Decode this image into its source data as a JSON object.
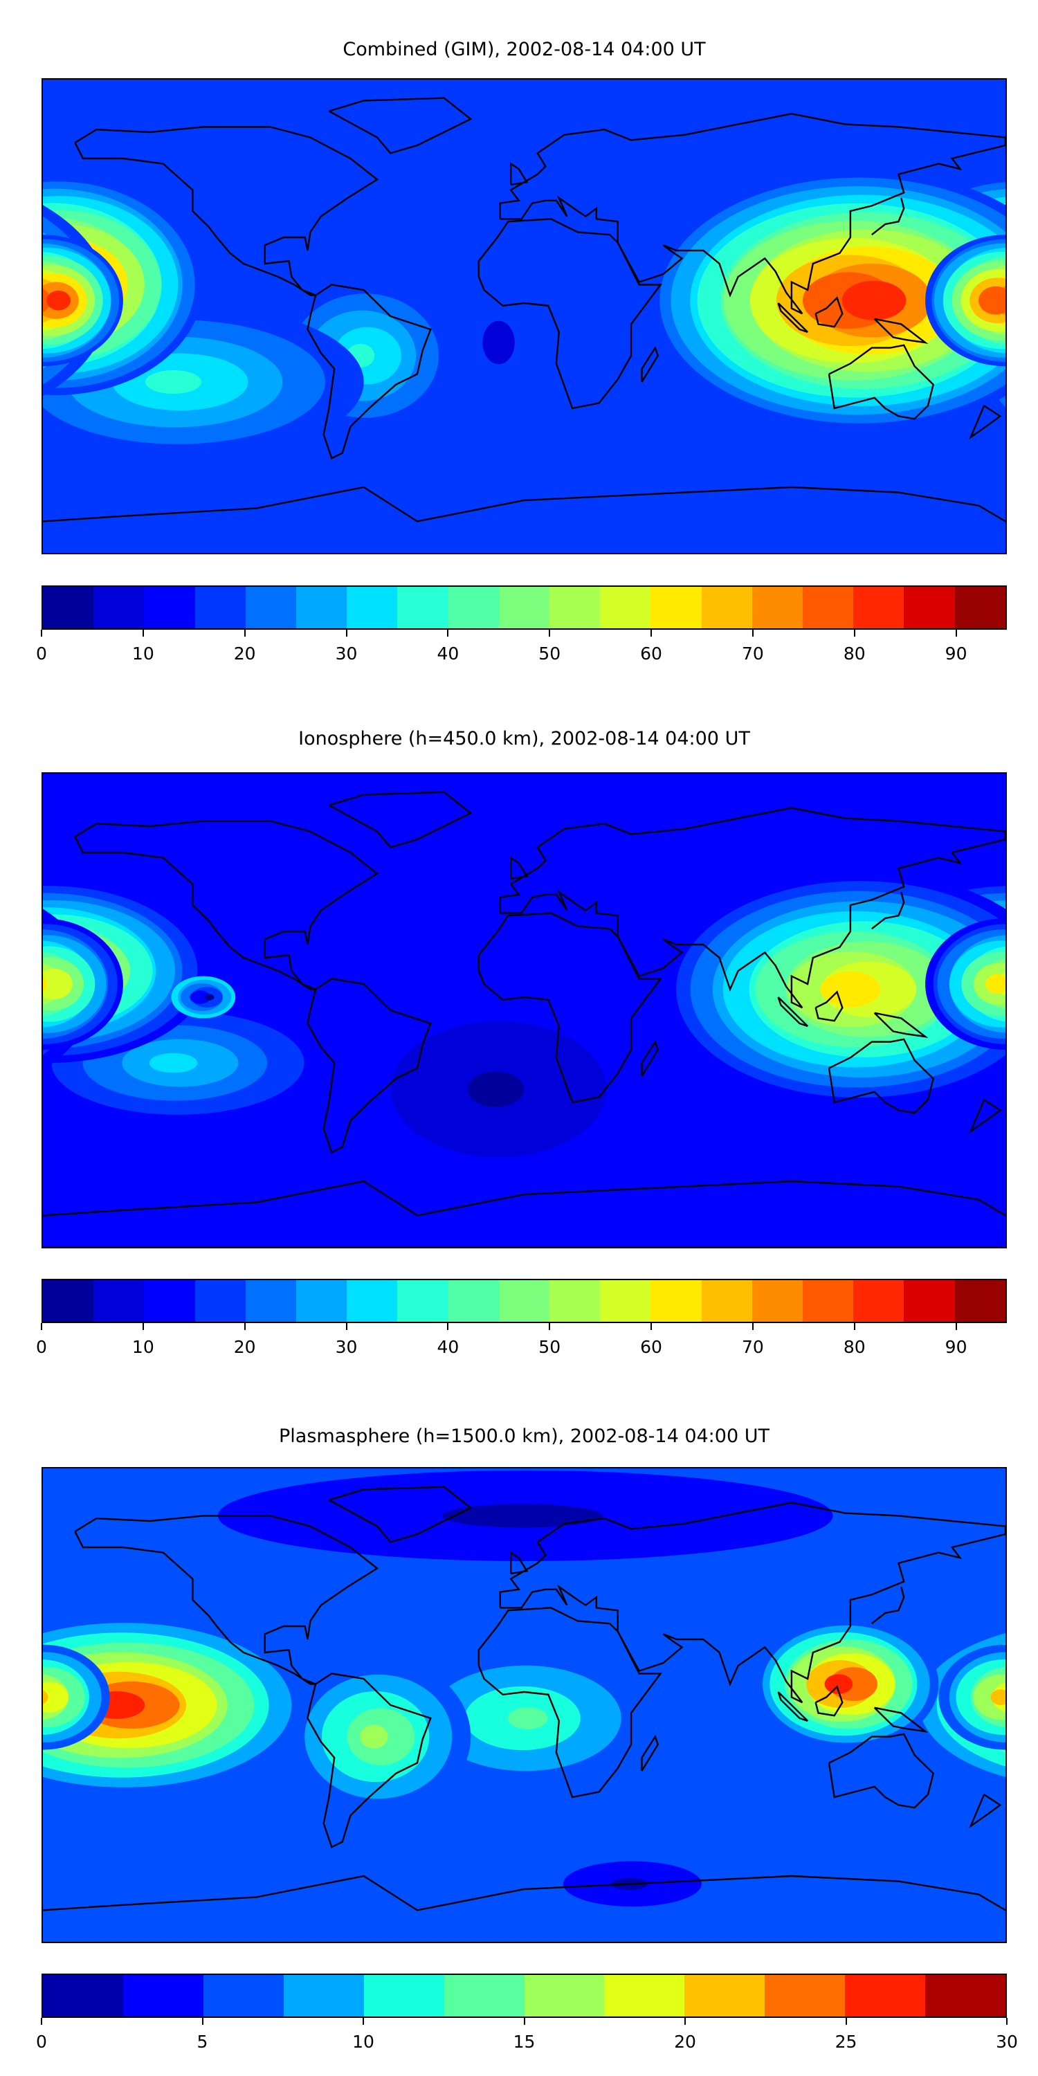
{
  "chart_data": [
    {
      "type": "heatmap",
      "title": "Combined (GIM), 2002-08-14 04:00 UT",
      "xlabel": "",
      "ylabel": "",
      "levels_min": 0,
      "levels_step": 5,
      "colors": [
        "#00009a",
        "#0000d8",
        "#0000ff",
        "#0038ff",
        "#0070ff",
        "#00a8ff",
        "#00e0ff",
        "#27ffd4",
        "#50ffa8",
        "#7cff7c",
        "#a8ff50",
        "#d4ff27",
        "#ffea00",
        "#ffbe00",
        "#ff8c00",
        "#ff5a00",
        "#ff2800",
        "#d80000",
        "#990000"
      ],
      "colorbar_ticks": [
        "0",
        "10",
        "20",
        "30",
        "40",
        "50",
        "60",
        "70",
        "80",
        "90"
      ],
      "colorbar_tick_values": [
        0,
        10,
        20,
        30,
        40,
        50,
        60,
        70,
        80,
        90
      ],
      "colorbar_range": [
        0,
        95
      ],
      "background_value": 17,
      "features": [
        {
          "lon": -10,
          "lat": -10,
          "rlon": 40,
          "rlat": 55,
          "peak": 10,
          "base": 17
        },
        {
          "lon": -60,
          "lat": -15,
          "rlon": 35,
          "rlat": 30,
          "peak": 37,
          "base": 17
        },
        {
          "lon": -130,
          "lat": -25,
          "rlon": 70,
          "rlat": 30,
          "peak": 37,
          "base": 17
        },
        {
          "lon": -175,
          "lat": 12,
          "rlon": 55,
          "rlat": 42,
          "peak": 82,
          "base": 17
        },
        {
          "lon": 125,
          "lat": 6,
          "rlon": 80,
          "rlat": 50,
          "peak": 82,
          "base": 17
        },
        {
          "lon": 180,
          "lat": 6,
          "rlon": 30,
          "rlat": 25,
          "peak": 82,
          "base": 17
        }
      ]
    },
    {
      "type": "heatmap",
      "title": "Ionosphere  (h=450.0 km), 2002-08-14 04:00 UT",
      "xlabel": "",
      "ylabel": "",
      "levels_min": 0,
      "levels_step": 5,
      "colors": [
        "#00009a",
        "#0000d8",
        "#0000ff",
        "#0038ff",
        "#0070ff",
        "#00a8ff",
        "#00e0ff",
        "#27ffd4",
        "#50ffa8",
        "#7cff7c",
        "#a8ff50",
        "#d4ff27",
        "#ffea00",
        "#ffbe00",
        "#ff8c00",
        "#ff5a00",
        "#ff2800",
        "#d80000",
        "#990000"
      ],
      "colorbar_ticks": [
        "0",
        "10",
        "20",
        "30",
        "40",
        "50",
        "60",
        "70",
        "80",
        "90"
      ],
      "colorbar_tick_values": [
        0,
        10,
        20,
        30,
        40,
        50,
        60,
        70,
        80,
        90
      ],
      "colorbar_range": [
        0,
        95
      ],
      "background_value": 12,
      "features": [
        {
          "lon": -10,
          "lat": -30,
          "rlon": 70,
          "rlat": 45,
          "peak": 2,
          "base": 12
        },
        {
          "lon": -130,
          "lat": -20,
          "rlon": 60,
          "rlat": 25,
          "peak": 32,
          "base": 12
        },
        {
          "lon": -178,
          "lat": 15,
          "rlon": 60,
          "rlat": 35,
          "peak": 67,
          "base": 12
        },
        {
          "lon": -120,
          "lat": 5,
          "rlon": 12,
          "rlat": 8,
          "peak": 5,
          "base": 32
        },
        {
          "lon": 125,
          "lat": 8,
          "rlon": 75,
          "rlat": 45,
          "peak": 62,
          "base": 12
        },
        {
          "lon": 180,
          "lat": 10,
          "rlon": 30,
          "rlat": 25,
          "peak": 62,
          "base": 12
        }
      ]
    },
    {
      "type": "heatmap",
      "title": "Plasmasphere (h=1500.0 km), 2002-08-14 04:00 UT",
      "xlabel": "",
      "ylabel": "",
      "levels_min": 0,
      "levels_step": 2.5,
      "colors": [
        "#0000aa",
        "#0000ff",
        "#0050ff",
        "#00a8ff",
        "#18ffde",
        "#58ff9e",
        "#9eff58",
        "#e2ff16",
        "#ffc000",
        "#ff6e00",
        "#ff2000",
        "#aa0000"
      ],
      "colorbar_ticks": [
        "0",
        "5",
        "10",
        "15",
        "20",
        "25",
        "30"
      ],
      "colorbar_tick_values": [
        0,
        5,
        10,
        15,
        20,
        25,
        30
      ],
      "colorbar_range": [
        0,
        30
      ],
      "background_value": 6,
      "features": [
        {
          "lon": 0,
          "lat": 72,
          "rlon": 200,
          "rlat": 30,
          "peak": 1,
          "base": 6
        },
        {
          "lon": 40,
          "lat": -68,
          "rlon": 45,
          "rlat": 15,
          "peak": 1,
          "base": 6
        },
        {
          "lon": 0,
          "lat": -5,
          "rlon": 50,
          "rlat": 28,
          "peak": 13,
          "base": 6
        },
        {
          "lon": -55,
          "lat": -12,
          "rlon": 35,
          "rlat": 30,
          "peak": 17,
          "base": 6
        },
        {
          "lon": -150,
          "lat": 0,
          "rlon": 70,
          "rlat": 35,
          "peak": 26,
          "base": 6
        },
        {
          "lon": 120,
          "lat": 8,
          "rlon": 35,
          "rlat": 25,
          "peak": 26,
          "base": 6
        },
        {
          "lon": 180,
          "lat": 3,
          "rlon": 25,
          "rlat": 20,
          "peak": 22,
          "base": 6
        }
      ]
    }
  ]
}
